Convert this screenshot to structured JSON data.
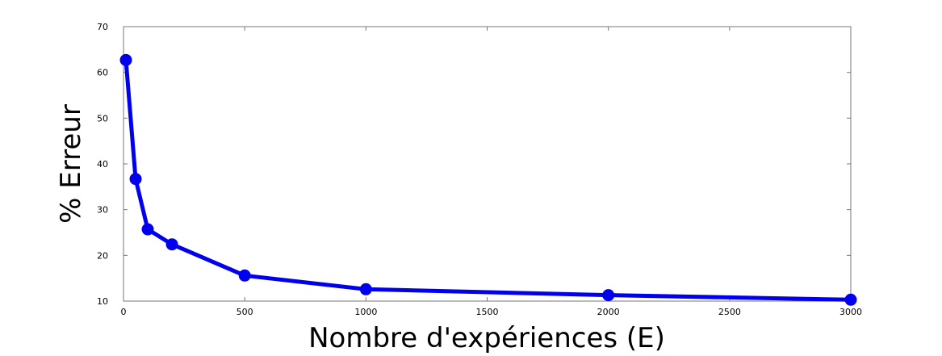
{
  "chart_data": {
    "type": "line",
    "title": "",
    "xlabel": "Nombre d'expériences (E)",
    "ylabel": "% Erreur",
    "xlim": [
      0,
      3000
    ],
    "ylim": [
      10,
      70
    ],
    "x_ticks": [
      0,
      500,
      1000,
      1500,
      2000,
      2500,
      3000
    ],
    "y_ticks": [
      10,
      20,
      30,
      40,
      50,
      60,
      70
    ],
    "grid": false,
    "legend": "none",
    "series": [
      {
        "color": "#0000ee",
        "marker": "circle",
        "points": [
          {
            "x": 10,
            "y": 62.7
          },
          {
            "x": 50,
            "y": 36.7
          },
          {
            "x": 100,
            "y": 25.7
          },
          {
            "x": 200,
            "y": 22.4
          },
          {
            "x": 500,
            "y": 15.6
          },
          {
            "x": 1000,
            "y": 12.6
          },
          {
            "x": 2000,
            "y": 11.3
          },
          {
            "x": 3000,
            "y": 10.3
          }
        ]
      }
    ]
  }
}
